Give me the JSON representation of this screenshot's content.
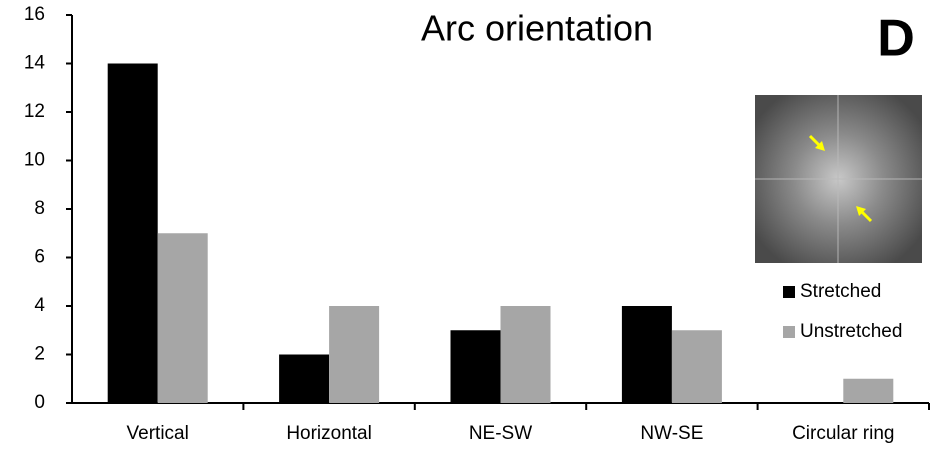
{
  "chart_data": {
    "type": "bar",
    "title": "Arc orientation",
    "panel_label": "D",
    "categories": [
      "Vertical",
      "Horizontal",
      "NE-SW",
      "NW-SE",
      "Circular ring"
    ],
    "series": [
      {
        "name": "Stretched",
        "color": "#000000",
        "values": [
          14,
          2,
          3,
          4,
          0
        ]
      },
      {
        "name": "Unstretched",
        "color": "#a6a6a6",
        "values": [
          7,
          4,
          4,
          3,
          1
        ]
      }
    ],
    "ylim": [
      0,
      16
    ],
    "yticks": [
      0,
      2,
      4,
      6,
      8,
      10,
      12,
      14,
      16
    ],
    "grid": false
  }
}
